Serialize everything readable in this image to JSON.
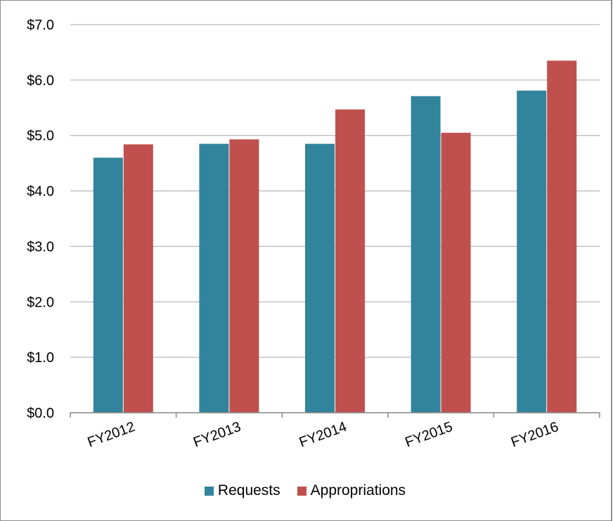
{
  "colors": {
    "requests": "#31849b",
    "appropriations": "#c0504d",
    "grid": "#a6a6a6",
    "axis": "#868686"
  },
  "chart_data": {
    "type": "bar",
    "categories": [
      "FY2012",
      "FY2013",
      "FY2014",
      "FY2015",
      "FY2016"
    ],
    "series": [
      {
        "name": "Requests",
        "values": [
          4.6,
          4.85,
          4.85,
          5.71,
          5.81
        ]
      },
      {
        "name": "Appropriations",
        "values": [
          4.84,
          4.93,
          5.47,
          5.05,
          6.35
        ]
      }
    ],
    "ylim": [
      0,
      7
    ],
    "yticks": [
      "$0.0",
      "$1.0",
      "$2.0",
      "$3.0",
      "$4.0",
      "$5.0",
      "$6.0",
      "$7.0"
    ],
    "grid": true,
    "legend_position": "bottom"
  }
}
